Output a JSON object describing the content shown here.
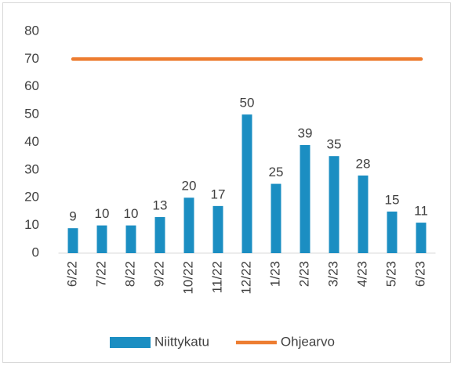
{
  "chart_data": {
    "type": "bar",
    "categories": [
      "6/22",
      "7/22",
      "8/22",
      "9/22",
      "10/22",
      "11/22",
      "12/22",
      "1/23",
      "2/23",
      "3/23",
      "4/23",
      "5/23",
      "6/23"
    ],
    "series": [
      {
        "name": "Niittykatu",
        "type": "bar",
        "color": "#1b8ec2",
        "values": [
          9,
          10,
          10,
          13,
          20,
          17,
          50,
          25,
          39,
          35,
          28,
          15,
          11
        ]
      },
      {
        "name": "Ohjearvo",
        "type": "line",
        "color": "#ed7d31",
        "values": [
          70,
          70,
          70,
          70,
          70,
          70,
          70,
          70,
          70,
          70,
          70,
          70,
          70
        ]
      }
    ],
    "ylim": [
      0,
      80
    ],
    "yticks": [
      0,
      10,
      20,
      30,
      40,
      50,
      60,
      70,
      80
    ],
    "grid": false,
    "legend": "bottom"
  }
}
